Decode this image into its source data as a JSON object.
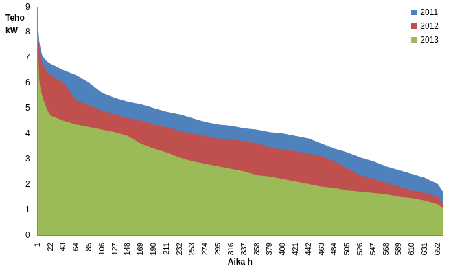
{
  "chart_data": {
    "type": "area",
    "x_label": "Aika h",
    "y_label": "Teho kW",
    "x": [
      1,
      3,
      5,
      8,
      12,
      16,
      22,
      43,
      64,
      85,
      106,
      127,
      148,
      169,
      190,
      211,
      232,
      253,
      274,
      295,
      316,
      337,
      358,
      379,
      400,
      421,
      442,
      463,
      484,
      505,
      526,
      547,
      568,
      589,
      610,
      631,
      652,
      660
    ],
    "series": [
      {
        "name": "2011",
        "color": "#4f81bd",
        "values": [
          8.4,
          7.7,
          7.4,
          7.1,
          6.95,
          6.85,
          6.75,
          6.5,
          6.3,
          6.0,
          5.6,
          5.4,
          5.25,
          5.15,
          5.0,
          4.85,
          4.75,
          4.6,
          4.45,
          4.35,
          4.3,
          4.2,
          4.15,
          4.05,
          4.0,
          3.9,
          3.8,
          3.6,
          3.4,
          3.25,
          3.05,
          2.9,
          2.7,
          2.55,
          2.4,
          2.25,
          2.0,
          1.7
        ]
      },
      {
        "name": "2012",
        "color": "#c0504d",
        "values": [
          8.0,
          7.4,
          7.0,
          6.8,
          6.6,
          6.45,
          6.3,
          6.0,
          5.3,
          5.1,
          4.9,
          4.75,
          4.6,
          4.5,
          4.35,
          4.25,
          4.1,
          4.0,
          3.9,
          3.8,
          3.75,
          3.7,
          3.6,
          3.45,
          3.35,
          3.3,
          3.2,
          3.1,
          2.9,
          2.6,
          2.35,
          2.2,
          2.05,
          1.9,
          1.75,
          1.65,
          1.5,
          1.2
        ]
      },
      {
        "name": "2013",
        "color": "#9bbb59",
        "values": [
          7.8,
          6.2,
          5.8,
          5.5,
          5.2,
          4.95,
          4.7,
          4.5,
          4.35,
          4.25,
          4.15,
          4.05,
          3.9,
          3.6,
          3.4,
          3.25,
          3.05,
          2.9,
          2.8,
          2.7,
          2.6,
          2.5,
          2.35,
          2.3,
          2.2,
          2.1,
          2.0,
          1.9,
          1.85,
          1.75,
          1.7,
          1.65,
          1.6,
          1.5,
          1.45,
          1.35,
          1.2,
          1.05
        ]
      }
    ],
    "xlim": [
      1,
      660
    ],
    "xticks": [
      1,
      22,
      43,
      64,
      85,
      106,
      127,
      148,
      169,
      190,
      211,
      232,
      253,
      274,
      295,
      316,
      337,
      358,
      379,
      400,
      421,
      442,
      463,
      484,
      505,
      526,
      547,
      568,
      589,
      610,
      631,
      652
    ],
    "ylim": [
      0,
      9
    ],
    "yticks": [
      0,
      1,
      2,
      3,
      4,
      5,
      6,
      7,
      8,
      9
    ],
    "grid": false,
    "legend": "upper right"
  }
}
